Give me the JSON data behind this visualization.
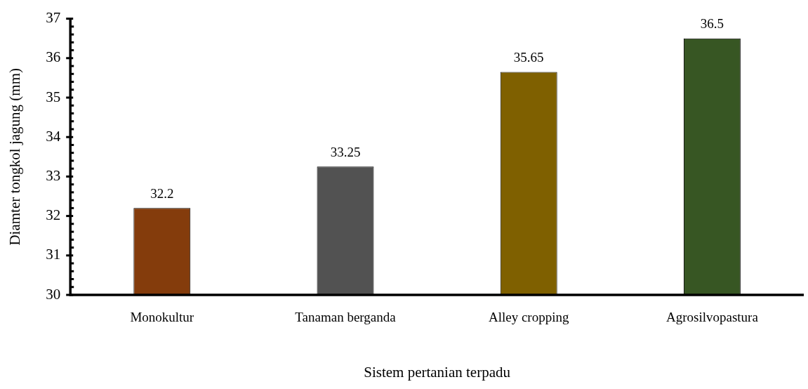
{
  "chart_data": {
    "type": "bar",
    "xlabel": "Sistem pertanian terpadu",
    "ylabel": "Diamter tongkol jagung (mm)",
    "categories": [
      "Monokultur",
      "Tanaman berganda",
      "Alley cropping",
      "Agrosilvopastura"
    ],
    "values": [
      32.2,
      33.25,
      35.65,
      36.5
    ],
    "colors": [
      "#843c0c",
      "#525252",
      "#7f6000",
      "#375623"
    ],
    "ylim": [
      30,
      37
    ],
    "yticks": [
      30,
      {
        "value": 30.2,
        "label": null
      },
      {
        "value": 30.4,
        "label": null
      },
      {
        "value": 30.6,
        "label": null
      },
      {
        "value": 30.8,
        "label": null
      },
      31,
      {
        "value": 31.2,
        "label": null
      },
      {
        "value": 31.4,
        "label": null
      },
      {
        "value": 31.6,
        "label": null
      },
      {
        "value": 31.8,
        "label": null
      },
      32,
      {
        "value": 32.2,
        "label": null
      },
      {
        "value": 32.4,
        "label": null
      },
      {
        "value": 32.6,
        "label": null
      },
      {
        "value": 32.8,
        "label": null
      },
      33,
      {
        "value": 33.2,
        "label": null
      },
      {
        "value": 33.4,
        "label": null
      },
      {
        "value": 33.6,
        "label": null
      },
      {
        "value": 33.8,
        "label": null
      },
      34,
      {
        "value": 34.2,
        "label": null
      },
      {
        "value": 34.4,
        "label": null
      },
      {
        "value": 34.6,
        "label": null
      },
      {
        "value": 34.8,
        "label": null
      },
      35,
      {
        "value": 35.2,
        "label": null
      },
      {
        "value": 35.4,
        "label": null
      },
      {
        "value": 35.6,
        "label": null
      },
      {
        "value": 35.8,
        "label": null
      },
      36,
      {
        "value": 36.2,
        "label": null
      },
      {
        "value": 36.4,
        "label": null
      },
      {
        "value": 36.6,
        "label": null
      },
      {
        "value": 36.8,
        "label": null
      },
      37
    ],
    "data_labels": true
  }
}
